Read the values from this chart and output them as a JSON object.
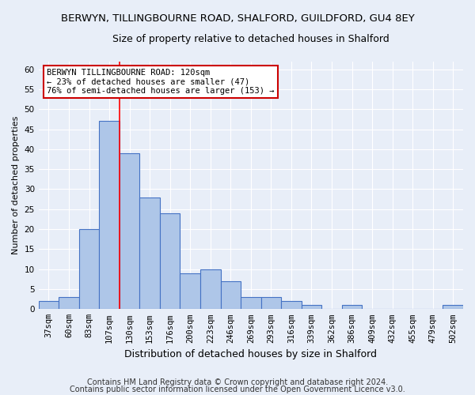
{
  "title1": "BERWYN, TILLINGBOURNE ROAD, SHALFORD, GUILDFORD, GU4 8EY",
  "title2": "Size of property relative to detached houses in Shalford",
  "xlabel": "Distribution of detached houses by size in Shalford",
  "ylabel": "Number of detached properties",
  "categories": [
    "37sqm",
    "60sqm",
    "83sqm",
    "107sqm",
    "130sqm",
    "153sqm",
    "176sqm",
    "200sqm",
    "223sqm",
    "246sqm",
    "269sqm",
    "293sqm",
    "316sqm",
    "339sqm",
    "362sqm",
    "386sqm",
    "409sqm",
    "432sqm",
    "455sqm",
    "479sqm",
    "502sqm"
  ],
  "values": [
    2,
    3,
    20,
    47,
    39,
    28,
    24,
    9,
    10,
    7,
    3,
    3,
    2,
    1,
    0,
    1,
    0,
    0,
    0,
    0,
    1
  ],
  "bar_color": "#aec6e8",
  "bar_edge_color": "#4472c4",
  "ylim": [
    0,
    62
  ],
  "yticks": [
    0,
    5,
    10,
    15,
    20,
    25,
    30,
    35,
    40,
    45,
    50,
    55,
    60
  ],
  "property_line_x": 3.5,
  "annotation_text": "BERWYN TILLINGBOURNE ROAD: 120sqm\n← 23% of detached houses are smaller (47)\n76% of semi-detached houses are larger (153) →",
  "annotation_box_color": "#ffffff",
  "annotation_box_edge": "#cc0000",
  "footer1": "Contains HM Land Registry data © Crown copyright and database right 2024.",
  "footer2": "Contains public sector information licensed under the Open Government Licence v3.0.",
  "background_color": "#e8eef8",
  "plot_bg_color": "#e8eef8",
  "grid_color": "#ffffff",
  "title1_fontsize": 9.5,
  "title2_fontsize": 9,
  "xlabel_fontsize": 9,
  "ylabel_fontsize": 8,
  "tick_fontsize": 7.5,
  "annotation_fontsize": 7.5,
  "footer_fontsize": 7
}
